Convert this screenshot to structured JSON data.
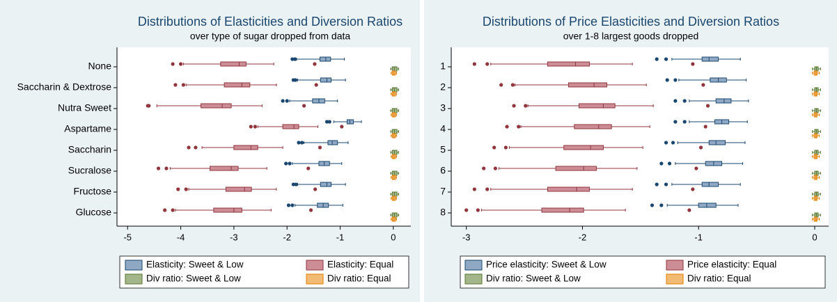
{
  "chart_data": [
    {
      "type": "box",
      "title": "Distributions of Elasticities and Diversion Ratios",
      "subtitle": "over type of sugar dropped from data",
      "categories": [
        "None",
        "Saccharin & Dextrose",
        "Nutra Sweet",
        "Aspartame",
        "Saccharin",
        "Sucralose",
        "Fructose",
        "Glucose"
      ],
      "xlim": [
        -5.2,
        0.33
      ],
      "xticks": [
        -5,
        -4,
        -3,
        -2,
        -1,
        0
      ],
      "series": [
        {
          "name": "Elasticity: Sweet & Low",
          "color": "#8fa9c5",
          "line_color": "#1a476f",
          "boxes": [
            {
              "min": -1.82,
              "q1": -1.38,
              "median": -1.27,
              "q3": -1.18,
              "max": -0.92,
              "outliers": [
                -1.9,
                -1.85
              ]
            },
            {
              "min": -1.8,
              "q1": -1.37,
              "median": -1.25,
              "q3": -1.17,
              "max": -0.9,
              "outliers": [
                -1.88,
                -1.84
              ]
            },
            {
              "min": -1.95,
              "q1": -1.52,
              "median": -1.4,
              "q3": -1.29,
              "max": -1.05,
              "outliers": [
                -2.08,
                -2.0
              ]
            },
            {
              "min": -1.12,
              "q1": -0.87,
              "median": -0.82,
              "q3": -0.75,
              "max": -0.6,
              "outliers": [
                -1.25,
                -1.2
              ]
            },
            {
              "min": -1.68,
              "q1": -1.23,
              "median": -1.15,
              "q3": -1.05,
              "max": -0.85,
              "outliers": [
                -1.78,
                -1.72
              ]
            },
            {
              "min": -1.9,
              "q1": -1.4,
              "median": -1.3,
              "q3": -1.2,
              "max": -0.97,
              "outliers": [
                -2.02,
                -1.95
              ]
            },
            {
              "min": -1.8,
              "q1": -1.37,
              "median": -1.25,
              "q3": -1.17,
              "max": -0.9,
              "outliers": [
                -1.88,
                -1.83
              ]
            },
            {
              "min": -1.85,
              "q1": -1.43,
              "median": -1.32,
              "q3": -1.22,
              "max": -0.95,
              "outliers": [
                -1.97,
                -1.9
              ]
            }
          ]
        },
        {
          "name": "Elasticity: Equal",
          "color": "#cc8d96",
          "line_color": "#90353b",
          "boxes": [
            {
              "min": -3.95,
              "q1": -3.25,
              "median": -2.9,
              "q3": -2.77,
              "max": -2.25,
              "outliers": [
                -4.15,
                -4.0,
                -1.48
              ]
            },
            {
              "min": -3.9,
              "q1": -3.18,
              "median": -2.85,
              "q3": -2.7,
              "max": -2.2,
              "outliers": [
                -4.1,
                -3.95,
                -1.45
              ]
            },
            {
              "min": -4.45,
              "q1": -3.62,
              "median": -3.22,
              "q3": -3.05,
              "max": -2.47,
              "outliers": [
                -4.62,
                -4.6,
                -1.68
              ]
            },
            {
              "min": -2.55,
              "q1": -2.08,
              "median": -1.87,
              "q3": -1.78,
              "max": -1.42,
              "outliers": [
                -2.68,
                -2.6,
                -0.97
              ]
            },
            {
              "min": -3.6,
              "q1": -3.0,
              "median": -2.68,
              "q3": -2.55,
              "max": -2.08,
              "outliers": [
                -3.85,
                -3.72,
                -1.38
              ]
            },
            {
              "min": -4.2,
              "q1": -3.45,
              "median": -3.05,
              "q3": -2.92,
              "max": -2.38,
              "outliers": [
                -4.42,
                -4.27,
                -1.6
              ]
            },
            {
              "min": -3.85,
              "q1": -3.15,
              "median": -2.8,
              "q3": -2.67,
              "max": -2.2,
              "outliers": [
                -4.05,
                -3.9,
                -1.47
              ]
            },
            {
              "min": -4.1,
              "q1": -3.38,
              "median": -3.0,
              "q3": -2.85,
              "max": -2.3,
              "outliers": [
                -4.3,
                -4.15,
                -1.55
              ]
            }
          ]
        },
        {
          "name": "Div ratio: Sweet & Low",
          "color": "#a3b68a",
          "line_color": "#55752f",
          "boxes": [
            {
              "min": -0.05,
              "q1": -0.02,
              "median": 0.02,
              "q3": 0.07,
              "max": 0.1,
              "outliers": []
            },
            {
              "min": -0.05,
              "q1": -0.02,
              "median": 0.02,
              "q3": 0.07,
              "max": 0.1,
              "outliers": []
            },
            {
              "min": -0.05,
              "q1": -0.02,
              "median": 0.02,
              "q3": 0.07,
              "max": 0.1,
              "outliers": []
            },
            {
              "min": -0.05,
              "q1": -0.02,
              "median": 0.02,
              "q3": 0.07,
              "max": 0.1,
              "outliers": []
            },
            {
              "min": -0.05,
              "q1": -0.02,
              "median": 0.02,
              "q3": 0.07,
              "max": 0.1,
              "outliers": []
            },
            {
              "min": -0.05,
              "q1": -0.02,
              "median": 0.02,
              "q3": 0.07,
              "max": 0.1,
              "outliers": []
            },
            {
              "min": -0.05,
              "q1": -0.02,
              "median": 0.02,
              "q3": 0.07,
              "max": 0.1,
              "outliers": []
            },
            {
              "min": -0.05,
              "q1": -0.02,
              "median": 0.02,
              "q3": 0.07,
              "max": 0.1,
              "outliers": []
            }
          ]
        },
        {
          "name": "Div ratio: Equal",
          "color": "#f1bb76",
          "line_color": "#e37e00",
          "boxes": [
            {
              "min": -0.04,
              "q1": -0.02,
              "median": 0.01,
              "q3": 0.04,
              "max": 0.06,
              "outliers": []
            },
            {
              "min": -0.04,
              "q1": -0.02,
              "median": 0.01,
              "q3": 0.04,
              "max": 0.06,
              "outliers": []
            },
            {
              "min": -0.04,
              "q1": -0.02,
              "median": 0.01,
              "q3": 0.04,
              "max": 0.06,
              "outliers": []
            },
            {
              "min": -0.04,
              "q1": -0.02,
              "median": 0.01,
              "q3": 0.04,
              "max": 0.06,
              "outliers": []
            },
            {
              "min": -0.04,
              "q1": -0.02,
              "median": 0.01,
              "q3": 0.04,
              "max": 0.06,
              "outliers": []
            },
            {
              "min": -0.04,
              "q1": -0.02,
              "median": 0.01,
              "q3": 0.04,
              "max": 0.06,
              "outliers": []
            },
            {
              "min": -0.04,
              "q1": -0.02,
              "median": 0.01,
              "q3": 0.04,
              "max": 0.06,
              "outliers": []
            },
            {
              "min": -0.04,
              "q1": -0.02,
              "median": 0.01,
              "q3": 0.04,
              "max": 0.06,
              "outliers": []
            }
          ]
        }
      ]
    },
    {
      "type": "box",
      "title": "Distributions of Price Elasticities and Diversion Ratios",
      "subtitle": "over 1-8 largest goods dropped",
      "categories": [
        "1",
        "2",
        "3",
        "4",
        "5",
        "6",
        "7",
        "8"
      ],
      "xlim": [
        -3.13,
        0.12
      ],
      "xticks": [
        -3,
        -2,
        -1,
        0
      ],
      "series": [
        {
          "name": "Price elasticity: Sweet & Low",
          "color": "#8fa9c5",
          "line_color": "#1a476f",
          "boxes": [
            {
              "min": -1.23,
              "q1": -0.97,
              "median": -0.91,
              "q3": -0.83,
              "max": -0.64,
              "outliers": [
                -1.36,
                -1.28
              ]
            },
            {
              "min": -1.17,
              "q1": -0.9,
              "median": -0.83,
              "q3": -0.76,
              "max": -0.59,
              "outliers": [
                -1.27,
                -1.2
              ]
            },
            {
              "min": -1.08,
              "q1": -0.85,
              "median": -0.78,
              "q3": -0.72,
              "max": -0.57,
              "outliers": [
                -1.2,
                -1.12
              ]
            },
            {
              "min": -1.08,
              "q1": -0.86,
              "median": -0.8,
              "q3": -0.74,
              "max": -0.58,
              "outliers": [
                -1.2,
                -1.12
              ]
            },
            {
              "min": -1.18,
              "q1": -0.91,
              "median": -0.85,
              "q3": -0.77,
              "max": -0.6,
              "outliers": [
                -1.28,
                -1.22
              ]
            },
            {
              "min": -1.2,
              "q1": -0.94,
              "median": -0.87,
              "q3": -0.8,
              "max": -0.62,
              "outliers": [
                -1.32,
                -1.25
              ]
            },
            {
              "min": -1.23,
              "q1": -0.97,
              "median": -0.91,
              "q3": -0.83,
              "max": -0.64,
              "outliers": [
                -1.36,
                -1.28
              ]
            },
            {
              "min": -1.27,
              "q1": -1.0,
              "median": -0.93,
              "q3": -0.85,
              "max": -0.66,
              "outliers": [
                -1.4,
                -1.32
              ]
            }
          ]
        },
        {
          "name": "Price elasticity: Equal",
          "color": "#cc8d96",
          "line_color": "#90353b",
          "boxes": [
            {
              "min": -2.79,
              "q1": -2.3,
              "median": -2.06,
              "q3": -1.94,
              "max": -1.57,
              "outliers": [
                -2.93,
                -2.82,
                -1.05
              ]
            },
            {
              "min": -2.58,
              "q1": -2.12,
              "median": -1.9,
              "q3": -1.79,
              "max": -1.45,
              "outliers": [
                -2.7,
                -2.6,
                -0.96
              ]
            },
            {
              "min": -2.47,
              "q1": -2.03,
              "median": -1.82,
              "q3": -1.72,
              "max": -1.39,
              "outliers": [
                -2.59,
                -2.49,
                -0.92
              ]
            },
            {
              "min": -2.53,
              "q1": -2.07,
              "median": -1.86,
              "q3": -1.75,
              "max": -1.42,
              "outliers": [
                -2.65,
                -2.55,
                -0.94
              ]
            },
            {
              "min": -2.63,
              "q1": -2.16,
              "median": -1.93,
              "q3": -1.82,
              "max": -1.48,
              "outliers": [
                -2.76,
                -2.66,
                -0.98
              ]
            },
            {
              "min": -2.72,
              "q1": -2.23,
              "median": -1.99,
              "q3": -1.88,
              "max": -1.53,
              "outliers": [
                -2.85,
                -2.75,
                -1.02
              ]
            },
            {
              "min": -2.79,
              "q1": -2.3,
              "median": -2.05,
              "q3": -1.94,
              "max": -1.57,
              "outliers": [
                -2.93,
                -2.82,
                -1.05
              ]
            },
            {
              "min": -2.87,
              "q1": -2.35,
              "median": -2.11,
              "q3": -1.99,
              "max": -1.63,
              "outliers": [
                -3.0,
                -2.9,
                -1.08
              ]
            }
          ]
        },
        {
          "name": "Div ratio: Sweet & Low",
          "color": "#a3b68a",
          "line_color": "#55752f",
          "boxes": [
            {
              "min": -0.02,
              "q1": 0.0,
              "median": 0.015,
              "q3": 0.03,
              "max": 0.05,
              "outliers": []
            },
            {
              "min": -0.02,
              "q1": 0.0,
              "median": 0.015,
              "q3": 0.03,
              "max": 0.05,
              "outliers": []
            },
            {
              "min": -0.02,
              "q1": 0.0,
              "median": 0.015,
              "q3": 0.03,
              "max": 0.05,
              "outliers": []
            },
            {
              "min": -0.02,
              "q1": 0.0,
              "median": 0.015,
              "q3": 0.03,
              "max": 0.05,
              "outliers": []
            },
            {
              "min": -0.02,
              "q1": 0.0,
              "median": 0.015,
              "q3": 0.03,
              "max": 0.05,
              "outliers": []
            },
            {
              "min": -0.02,
              "q1": 0.0,
              "median": 0.015,
              "q3": 0.03,
              "max": 0.05,
              "outliers": []
            },
            {
              "min": -0.02,
              "q1": 0.0,
              "median": 0.015,
              "q3": 0.03,
              "max": 0.05,
              "outliers": []
            },
            {
              "min": -0.02,
              "q1": 0.0,
              "median": 0.015,
              "q3": 0.03,
              "max": 0.05,
              "outliers": []
            }
          ]
        },
        {
          "name": "Div ratio: Equal",
          "color": "#f1bb76",
          "line_color": "#e37e00",
          "boxes": [
            {
              "min": -0.02,
              "q1": -0.005,
              "median": 0.01,
              "q3": 0.02,
              "max": 0.04,
              "outliers": []
            },
            {
              "min": -0.02,
              "q1": -0.005,
              "median": 0.01,
              "q3": 0.02,
              "max": 0.04,
              "outliers": []
            },
            {
              "min": -0.02,
              "q1": -0.005,
              "median": 0.01,
              "q3": 0.02,
              "max": 0.04,
              "outliers": []
            },
            {
              "min": -0.02,
              "q1": -0.005,
              "median": 0.01,
              "q3": 0.02,
              "max": 0.04,
              "outliers": []
            },
            {
              "min": -0.02,
              "q1": -0.005,
              "median": 0.01,
              "q3": 0.02,
              "max": 0.04,
              "outliers": []
            },
            {
              "min": -0.02,
              "q1": -0.005,
              "median": 0.01,
              "q3": 0.02,
              "max": 0.04,
              "outliers": []
            },
            {
              "min": -0.02,
              "q1": -0.005,
              "median": 0.01,
              "q3": 0.02,
              "max": 0.04,
              "outliers": []
            },
            {
              "min": -0.02,
              "q1": -0.005,
              "median": 0.01,
              "q3": 0.02,
              "max": 0.04,
              "outliers": []
            }
          ]
        }
      ]
    }
  ]
}
